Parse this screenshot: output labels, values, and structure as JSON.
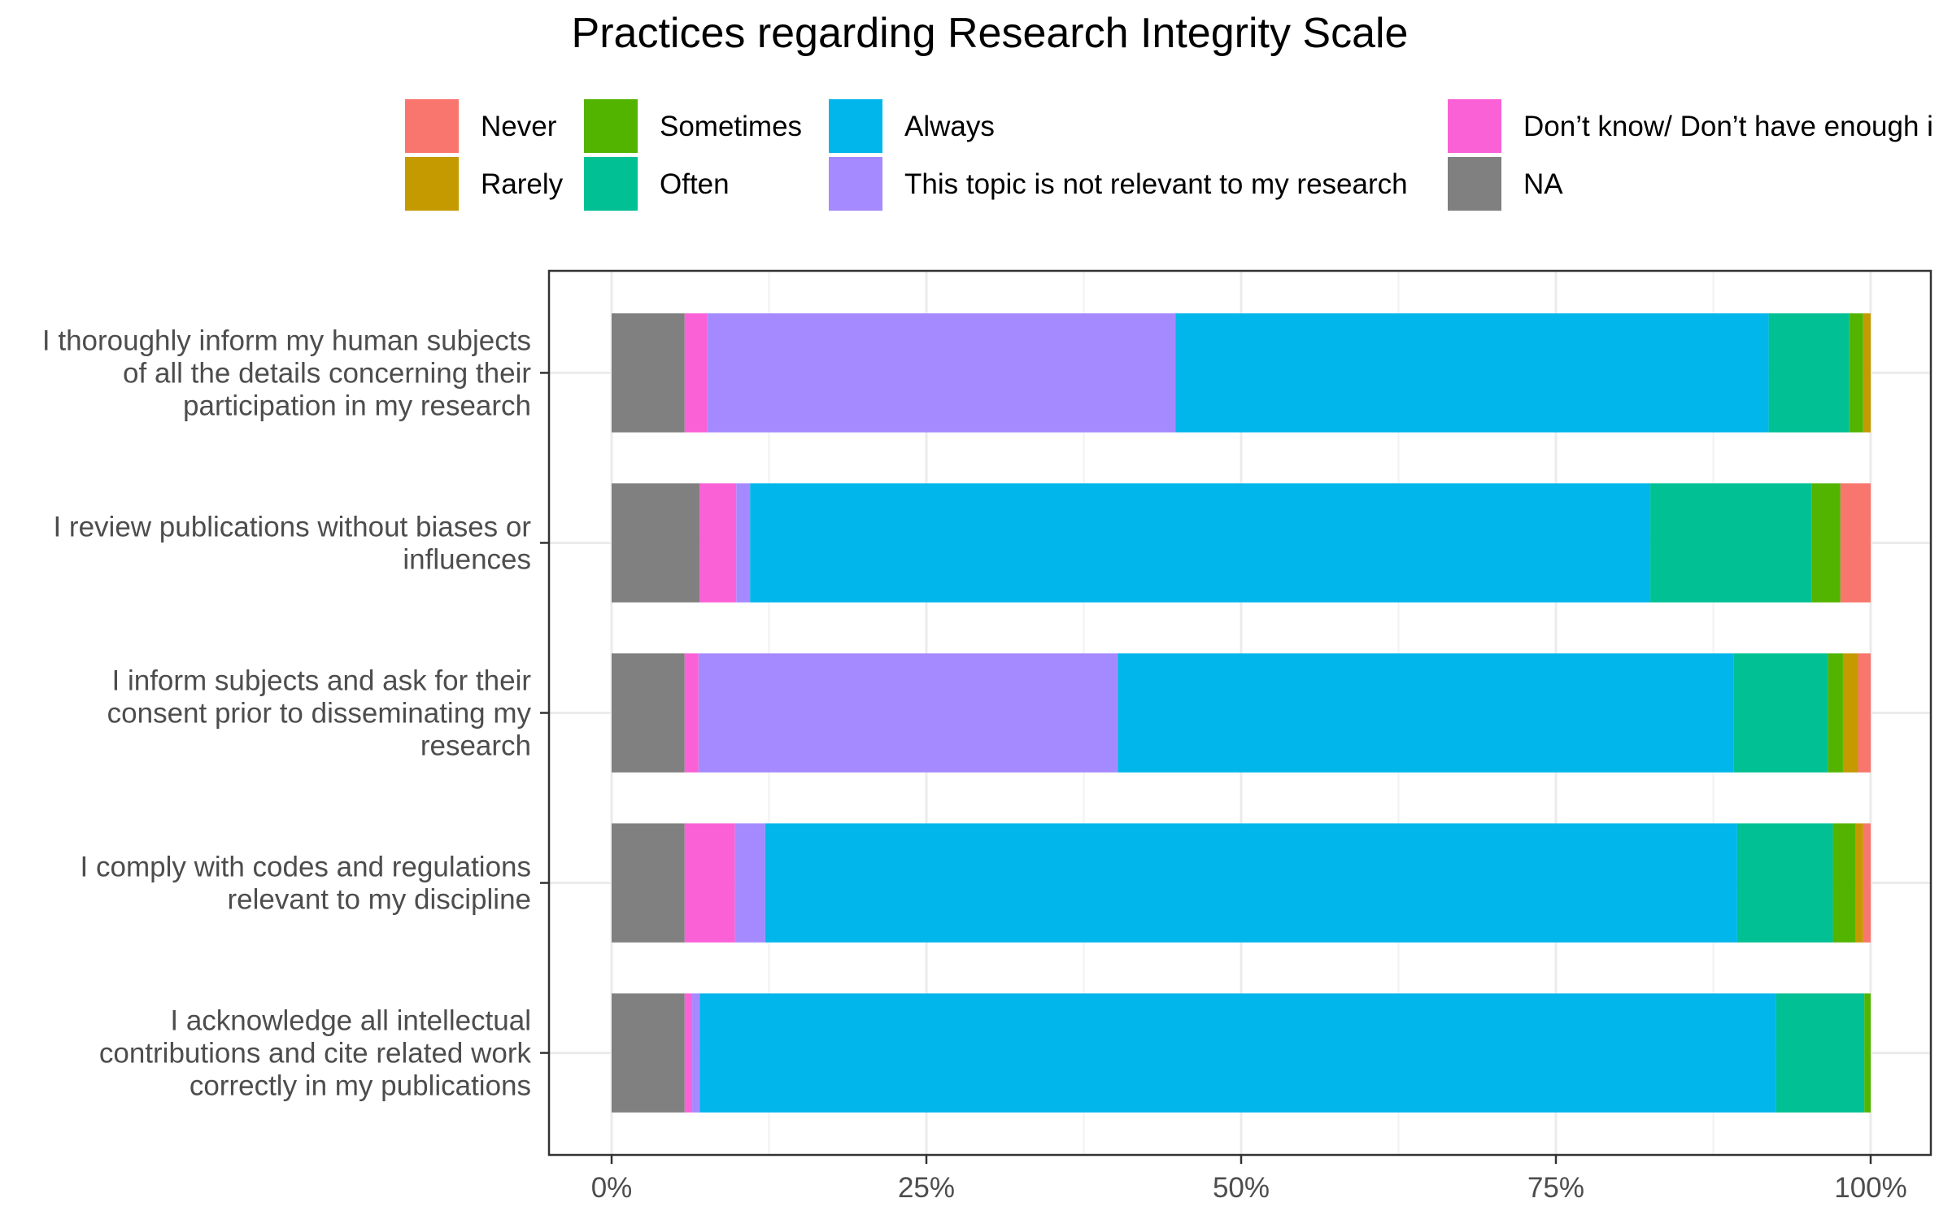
{
  "chart_data": {
    "type": "bar",
    "orientation": "horizontal",
    "stacked": true,
    "title": "Practices regarding Research Integrity Scale",
    "xlabel": "",
    "ylabel": "",
    "xlim": [
      0,
      100
    ],
    "x_ticks": [
      0,
      25,
      50,
      75,
      100
    ],
    "x_tick_labels": [
      "0%",
      "25%",
      "50%",
      "75%",
      "100%"
    ],
    "grid": true,
    "legend_position": "top",
    "categories": [
      "I thoroughly inform my human subjects\nof all the details concerning their\nparticipation in my research",
      "I review publications without biases or\ninfluences",
      "I inform subjects and ask for their\nconsent prior to disseminating my\nresearch",
      "I comply with codes and regulations\nrelevant to my discipline",
      "I acknowledge all intellectual\ncontributions and cite related work\ncorrectly in my publications"
    ],
    "legend": [
      {
        "name": "Never",
        "color": "#F8766D"
      },
      {
        "name": "Rarely",
        "color": "#C49A00"
      },
      {
        "name": "Sometimes",
        "color": "#53B400"
      },
      {
        "name": "Often",
        "color": "#00C094"
      },
      {
        "name": "Always",
        "color": "#00B6EB"
      },
      {
        "name": "This topic is not relevant to my research",
        "color": "#A58AFF"
      },
      {
        "name": "Don’t know/ Don’t have enough i",
        "color": "#FB61D7"
      },
      {
        "name": "NA",
        "color": "#808080"
      }
    ],
    "stack_order_left_to_right": [
      "NA",
      "Don’t know/ Don’t have enough i",
      "This topic is not relevant to my research",
      "Always",
      "Often",
      "Sometimes",
      "Rarely",
      "Never"
    ],
    "series": [
      {
        "name": "NA",
        "color": "#808080",
        "values": [
          5.8,
          7.0,
          5.8,
          5.8,
          5.8
        ]
      },
      {
        "name": "Don’t know/ Don’t have enough i",
        "color": "#FB61D7",
        "values": [
          1.8,
          2.9,
          1.1,
          4.0,
          0.6
        ]
      },
      {
        "name": "This topic is not relevant to my research",
        "color": "#A58AFF",
        "values": [
          37.2,
          1.1,
          33.3,
          2.4,
          0.6
        ]
      },
      {
        "name": "Always",
        "color": "#00B6EB",
        "values": [
          47.1,
          71.5,
          48.9,
          77.2,
          85.5
        ]
      },
      {
        "name": "Often",
        "color": "#00C094",
        "values": [
          6.4,
          12.8,
          7.5,
          7.6,
          7.0
        ]
      },
      {
        "name": "Sometimes",
        "color": "#53B400",
        "values": [
          1.1,
          2.3,
          1.2,
          1.8,
          0.5
        ]
      },
      {
        "name": "Rarely",
        "color": "#C49A00",
        "values": [
          0.6,
          0.0,
          1.2,
          0.6,
          0.0
        ]
      },
      {
        "name": "Never",
        "color": "#F8766D",
        "values": [
          0.0,
          2.4,
          1.0,
          0.6,
          0.0
        ]
      }
    ]
  }
}
